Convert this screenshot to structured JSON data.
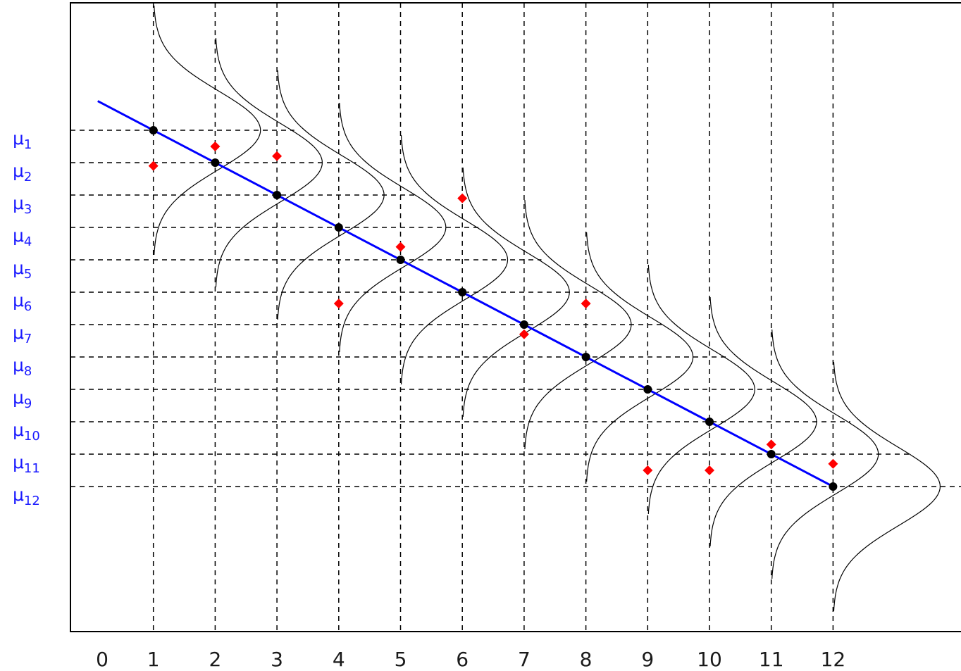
{
  "chart_data": {
    "type": "scatter",
    "x_ticks": [
      "0",
      "1",
      "2",
      "3",
      "4",
      "5",
      "6",
      "7",
      "8",
      "9",
      "10",
      "11",
      "12"
    ],
    "xlim": [
      0,
      12
    ],
    "mean_labels": [
      {
        "symbol": "μ",
        "sub": "1"
      },
      {
        "symbol": "μ",
        "sub": "2"
      },
      {
        "symbol": "μ",
        "sub": "3"
      },
      {
        "symbol": "μ",
        "sub": "4"
      },
      {
        "symbol": "μ",
        "sub": "5"
      },
      {
        "symbol": "μ",
        "sub": "6"
      },
      {
        "symbol": "μ",
        "sub": "7"
      },
      {
        "symbol": "μ",
        "sub": "8"
      },
      {
        "symbol": "μ",
        "sub": "9"
      },
      {
        "symbol": "μ",
        "sub": "10"
      },
      {
        "symbol": "μ",
        "sub": "11"
      },
      {
        "symbol": "μ",
        "sub": "12"
      }
    ],
    "means": {
      "name": "",
      "x": [
        1,
        2,
        3,
        4,
        5,
        6,
        7,
        8,
        9,
        10,
        11,
        12
      ],
      "y": [
        1,
        2,
        3,
        4,
        5,
        6,
        7,
        8,
        9,
        10,
        11,
        12
      ],
      "color": "#000000"
    },
    "regression_line": {
      "x": [
        0.1,
        12
      ],
      "y": [
        0.1,
        12
      ],
      "color": "#0000ff"
    },
    "observations": {
      "name": "",
      "x": [
        1,
        2,
        3,
        4,
        5,
        6,
        7,
        8,
        9,
        10,
        11,
        12
      ],
      "y": [
        2.1,
        1.5,
        1.8,
        6.35,
        4.6,
        3.1,
        7.3,
        6.35,
        11.5,
        11.5,
        10.7,
        11.3
      ],
      "color": "#ff0000"
    },
    "distributions": {
      "color": "#000000",
      "count": 12,
      "shape": "normal curve centered on each mean, drawn sideways"
    },
    "grid": true,
    "grid_style": "dashed"
  }
}
